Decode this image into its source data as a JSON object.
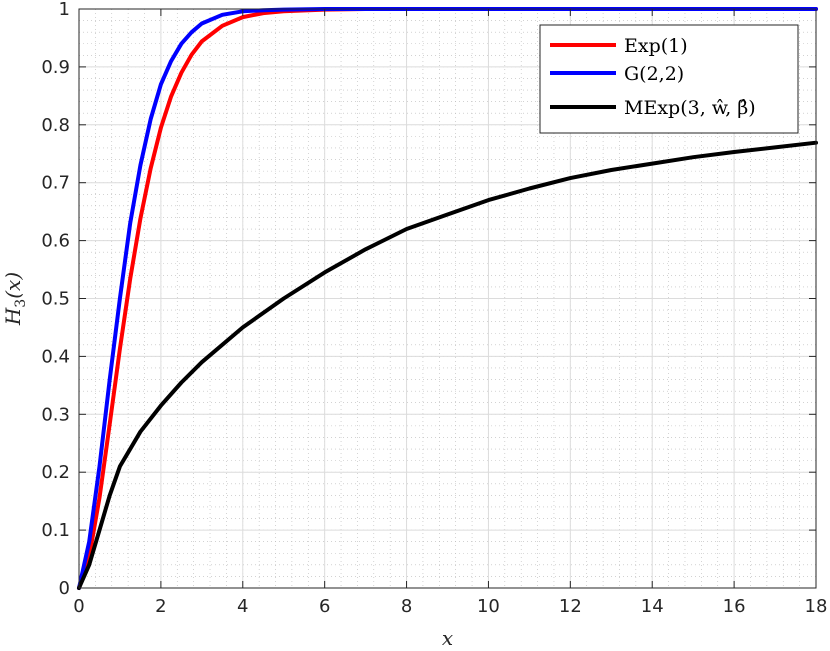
{
  "chart_data": {
    "type": "line",
    "xlabel": "x",
    "ylabel": "H3(x)",
    "ylabel_main": "H",
    "ylabel_sub": "3",
    "ylabel_arg": "(x)",
    "xlim": [
      0,
      18
    ],
    "ylim": [
      0,
      1
    ],
    "xticks": [
      0,
      2,
      4,
      6,
      8,
      10,
      12,
      14,
      16,
      18
    ],
    "yticks": [
      0,
      0.1,
      0.2,
      0.3,
      0.4,
      0.5,
      0.6,
      0.7,
      0.8,
      0.9,
      1
    ],
    "grid": true,
    "minor_grid": true,
    "legend_position": "top-right",
    "series": [
      {
        "name": "Exp(1)",
        "color": "#ff0000",
        "x": [
          0,
          0.25,
          0.5,
          0.75,
          1,
          1.25,
          1.5,
          1.75,
          2,
          2.25,
          2.5,
          2.75,
          3,
          3.5,
          4,
          4.5,
          5,
          6,
          7,
          8,
          10,
          12,
          14,
          16,
          18
        ],
        "y": [
          0,
          0.054,
          0.156,
          0.283,
          0.413,
          0.534,
          0.638,
          0.725,
          0.795,
          0.849,
          0.89,
          0.921,
          0.944,
          0.971,
          0.986,
          0.993,
          0.996,
          0.999,
          1.0,
          1.0,
          1.0,
          1.0,
          1.0,
          1.0,
          1.0
        ]
      },
      {
        "name": "G(2,2)",
        "color": "#0000ff",
        "x": [
          0,
          0.25,
          0.5,
          0.75,
          1,
          1.25,
          1.5,
          1.75,
          2,
          2.25,
          2.5,
          2.75,
          3,
          3.5,
          4,
          4.5,
          5,
          6,
          7,
          8,
          10,
          12,
          14,
          16,
          18
        ],
        "y": [
          0,
          0.08,
          0.21,
          0.36,
          0.5,
          0.63,
          0.73,
          0.81,
          0.87,
          0.91,
          0.94,
          0.96,
          0.975,
          0.99,
          0.996,
          0.998,
          0.999,
          1.0,
          1.0,
          1.0,
          1.0,
          1.0,
          1.0,
          1.0,
          1.0
        ]
      },
      {
        "name": "MExp(3, ŵ, β̂)",
        "color": "#000000",
        "x": [
          0,
          0.25,
          0.5,
          0.75,
          1,
          1.5,
          2,
          2.5,
          3,
          4,
          5,
          6,
          7,
          8,
          9,
          10,
          11,
          12,
          13,
          14,
          15,
          16,
          17,
          18
        ],
        "y": [
          0,
          0.04,
          0.1,
          0.16,
          0.21,
          0.27,
          0.315,
          0.355,
          0.39,
          0.45,
          0.5,
          0.545,
          0.585,
          0.62,
          0.645,
          0.67,
          0.69,
          0.708,
          0.722,
          0.733,
          0.744,
          0.753,
          0.761,
          0.769
        ]
      }
    ]
  }
}
